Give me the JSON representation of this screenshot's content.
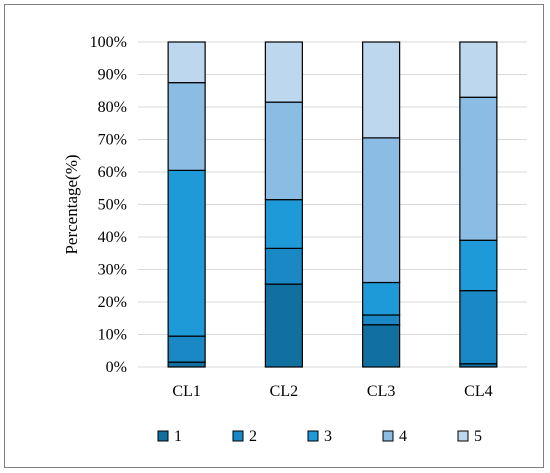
{
  "chart_data": {
    "type": "bar",
    "stacked": true,
    "percent_stacked": true,
    "categories": [
      "CL1",
      "CL2",
      "CL3",
      "CL4"
    ],
    "series": [
      {
        "name": "1",
        "values": [
          1.5,
          25.5,
          13.0,
          1.0
        ],
        "color": "#1270a0"
      },
      {
        "name": "2",
        "values": [
          8.0,
          11.0,
          3.0,
          22.5
        ],
        "color": "#1a88c4"
      },
      {
        "name": "3",
        "values": [
          51.0,
          15.0,
          10.0,
          15.5
        ],
        "color": "#1f9ad8"
      },
      {
        "name": "4",
        "values": [
          27.0,
          30.0,
          44.5,
          44.0
        ],
        "color": "#8bbce3"
      },
      {
        "name": "5",
        "values": [
          12.5,
          18.5,
          29.5,
          17.0
        ],
        "color": "#bdd7ee"
      }
    ],
    "title": "",
    "xlabel": "",
    "ylabel": "Percentage(%)",
    "ylim": [
      0,
      100
    ],
    "yticks": [
      "0%",
      "10%",
      "20%",
      "30%",
      "40%",
      "50%",
      "60%",
      "70%",
      "80%",
      "90%",
      "100%"
    ],
    "grid": "horizontal",
    "legend": "bottom"
  }
}
